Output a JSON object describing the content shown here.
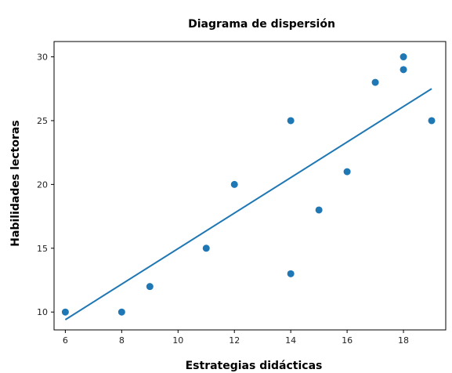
{
  "chart_data": {
    "type": "scatter",
    "title": "Diagrama de dispersión",
    "xlabel": "Estrategias didácticas",
    "ylabel": "Habilidades  lectoras",
    "xlim": [
      5.6,
      19.5
    ],
    "ylim": [
      8.6,
      31.2
    ],
    "xticks": [
      6,
      8,
      10,
      12,
      14,
      16,
      18
    ],
    "yticks": [
      10,
      15,
      20,
      25,
      30
    ],
    "grid": false,
    "colors": {
      "points": "#1f77b4",
      "trend_line": "#1f77b4"
    },
    "points": [
      {
        "x": 6,
        "y": 10
      },
      {
        "x": 8,
        "y": 10
      },
      {
        "x": 9,
        "y": 12
      },
      {
        "x": 11,
        "y": 15
      },
      {
        "x": 12,
        "y": 20
      },
      {
        "x": 14,
        "y": 25
      },
      {
        "x": 14,
        "y": 13
      },
      {
        "x": 15,
        "y": 18
      },
      {
        "x": 16,
        "y": 21
      },
      {
        "x": 17,
        "y": 28
      },
      {
        "x": 18,
        "y": 30
      },
      {
        "x": 18,
        "y": 29
      },
      {
        "x": 19,
        "y": 25
      }
    ],
    "trend_line": {
      "x": [
        6,
        19
      ],
      "y": [
        9.4,
        27.5
      ]
    }
  }
}
